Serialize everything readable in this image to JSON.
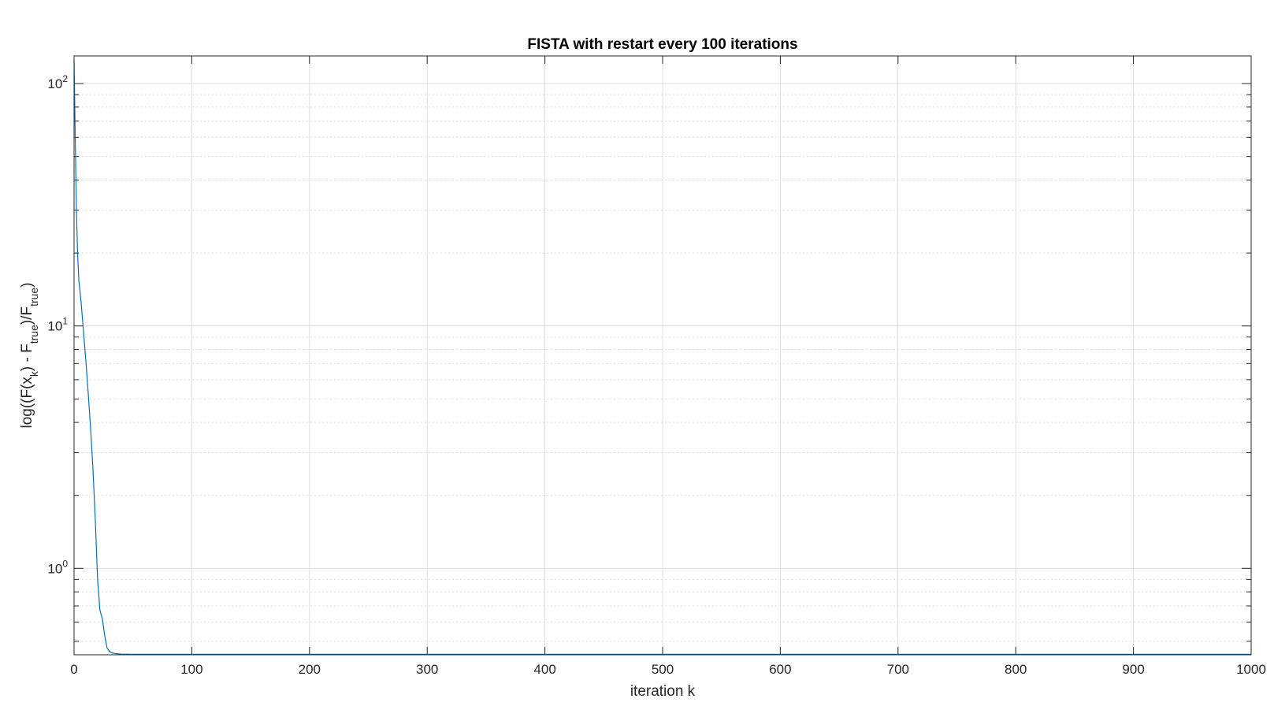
{
  "chart_data": {
    "type": "line",
    "title": "FISTA with restart every 100 iterations",
    "xlabel": "iteration k",
    "ylabel": {
      "parts": [
        {
          "t": "log((F(x",
          "sub": false
        },
        {
          "t": "k",
          "sub": true
        },
        {
          "t": ") - F",
          "sub": false
        },
        {
          "t": "true",
          "sub": true
        },
        {
          "t": ")/F",
          "sub": false
        },
        {
          "t": "true",
          "sub": true
        },
        {
          "t": ")",
          "sub": false
        }
      ]
    },
    "xlim": [
      0,
      1000
    ],
    "ylim": [
      0.44,
      130
    ],
    "yscale": "log",
    "grid": true,
    "minor_grid": true,
    "line_color": "#0072BD",
    "xticks": [
      {
        "value": 0,
        "label": "0"
      },
      {
        "value": 100,
        "label": "100"
      },
      {
        "value": 200,
        "label": "200"
      },
      {
        "value": 300,
        "label": "300"
      },
      {
        "value": 400,
        "label": "400"
      },
      {
        "value": 500,
        "label": "500"
      },
      {
        "value": 600,
        "label": "600"
      },
      {
        "value": 700,
        "label": "700"
      },
      {
        "value": 800,
        "label": "800"
      },
      {
        "value": 900,
        "label": "900"
      },
      {
        "value": 1000,
        "label": "1000"
      }
    ],
    "yticks": [
      {
        "value": 1,
        "base": "10",
        "exp": "0"
      },
      {
        "value": 10,
        "base": "10",
        "exp": "1"
      },
      {
        "value": 100,
        "base": "10",
        "exp": "2"
      }
    ],
    "series": [
      {
        "x": [
          0,
          1,
          2,
          3,
          4,
          5,
          6,
          8,
          10,
          12,
          14,
          16,
          18,
          20,
          22,
          24,
          26,
          28,
          30,
          32,
          35,
          40,
          50,
          100,
          200,
          300,
          400,
          500,
          600,
          700,
          800,
          900,
          1000
        ],
        "y": [
          125,
          60,
          30,
          20,
          15.5,
          14,
          12.5,
          9.5,
          7.2,
          5.3,
          3.8,
          2.6,
          1.6,
          0.9,
          0.67,
          0.62,
          0.53,
          0.47,
          0.455,
          0.448,
          0.445,
          0.443,
          0.442,
          0.442,
          0.442,
          0.442,
          0.442,
          0.442,
          0.442,
          0.442,
          0.442,
          0.442,
          0.442
        ]
      }
    ]
  }
}
